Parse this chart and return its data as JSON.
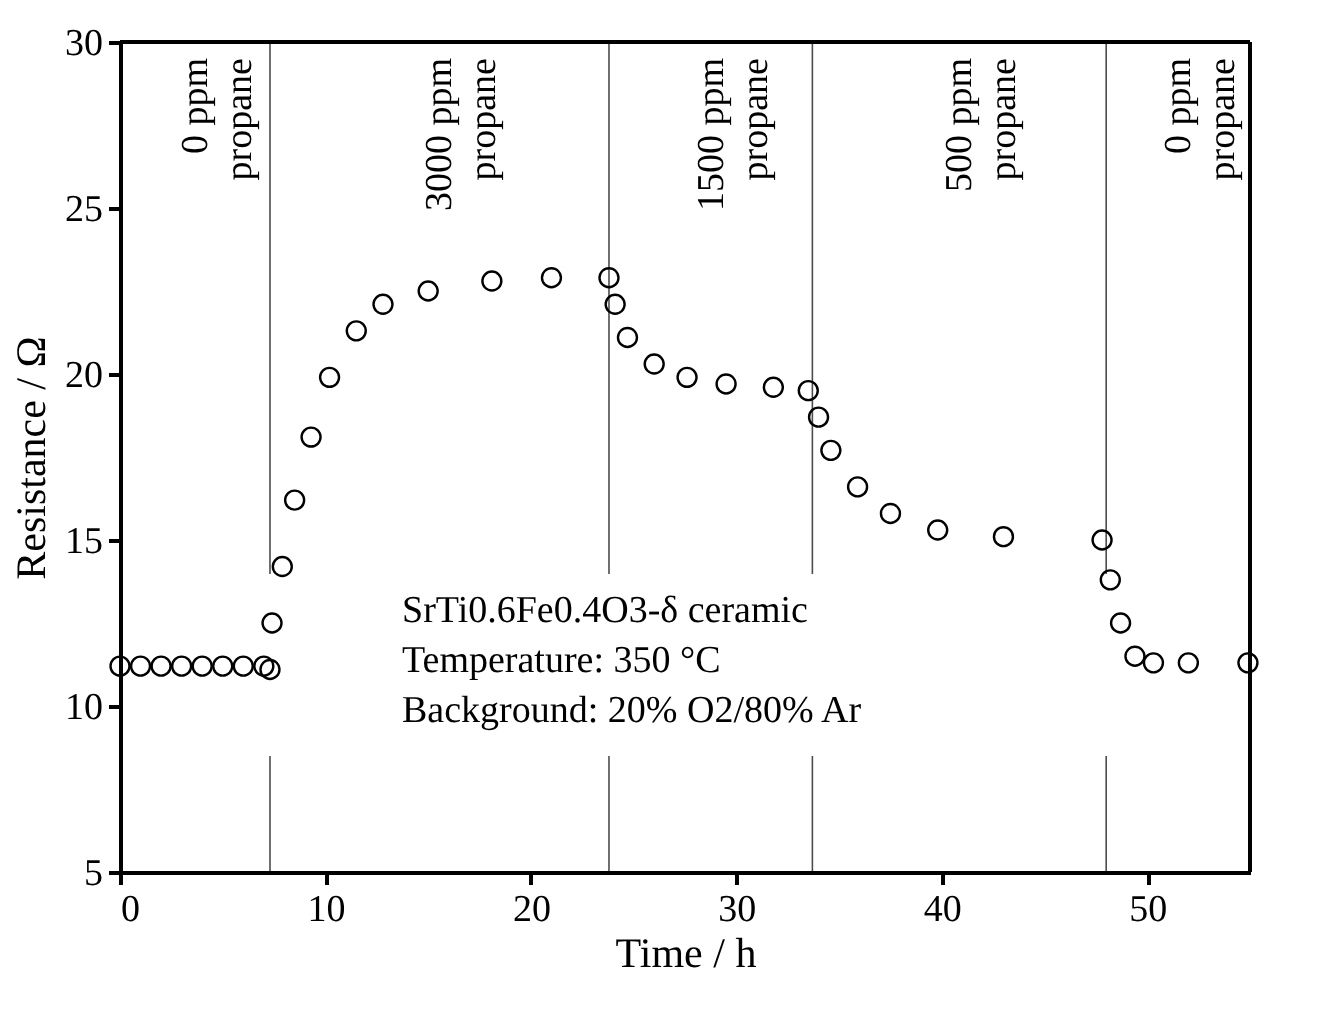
{
  "chart_data": {
    "type": "scatter",
    "xlabel": "Time / h",
    "ylabel": "Resistance / Ω",
    "xlim": [
      0,
      55
    ],
    "xticks": [
      0,
      10,
      20,
      30,
      40,
      50
    ],
    "ylim": [
      5,
      30
    ],
    "yticks": [
      5,
      10,
      15,
      20,
      25,
      30
    ],
    "marker": "circle",
    "grid": false,
    "series": [
      {
        "color": "#000000",
        "x": [
          0,
          1,
          2,
          3,
          4,
          5,
          6,
          7,
          7.3,
          7.4,
          7.9,
          8.5,
          9.3,
          10.2,
          11.5,
          12.8,
          15,
          18.1,
          21,
          23.8,
          24.1,
          24.7,
          26.0,
          27.6,
          29.5,
          31.8,
          33.5,
          34.0,
          34.6,
          35.9,
          37.5,
          39.8,
          43.0,
          47.8,
          48.2,
          48.7,
          49.4,
          50.3,
          52,
          54.9
        ],
        "values": [
          11.2,
          11.2,
          11.2,
          11.2,
          11.2,
          11.2,
          11.2,
          11.2,
          11.1,
          12.5,
          14.2,
          16.2,
          18.1,
          19.9,
          21.3,
          22.1,
          22.5,
          22.8,
          22.9,
          22.9,
          22.1,
          21.1,
          20.3,
          19.9,
          19.7,
          19.6,
          19.5,
          18.7,
          17.7,
          16.6,
          15.8,
          15.3,
          15.1,
          15.0,
          13.8,
          12.5,
          11.5,
          11.3,
          11.3,
          11.3
        ]
      }
    ],
    "ref_lines": [
      {
        "axis": "x",
        "value": 7.3,
        "color": "#000000"
      },
      {
        "axis": "x",
        "value": 23.8,
        "color": "#000000"
      },
      {
        "axis": "x",
        "value": 33.7,
        "color": "#000000"
      },
      {
        "axis": "x",
        "value": 48.0,
        "color": "#000000"
      }
    ],
    "annotations": [
      "0 ppm\npropane",
      "3000 ppm\npropane",
      "1500 ppm\npropane",
      "500 ppm\npropane",
      "0 ppm\npropane",
      "SrTi0.6Fe0.4O3-δ ceramic",
      "Temperature: 350 °C",
      "Background: 20% O2/80% Ar"
    ]
  }
}
